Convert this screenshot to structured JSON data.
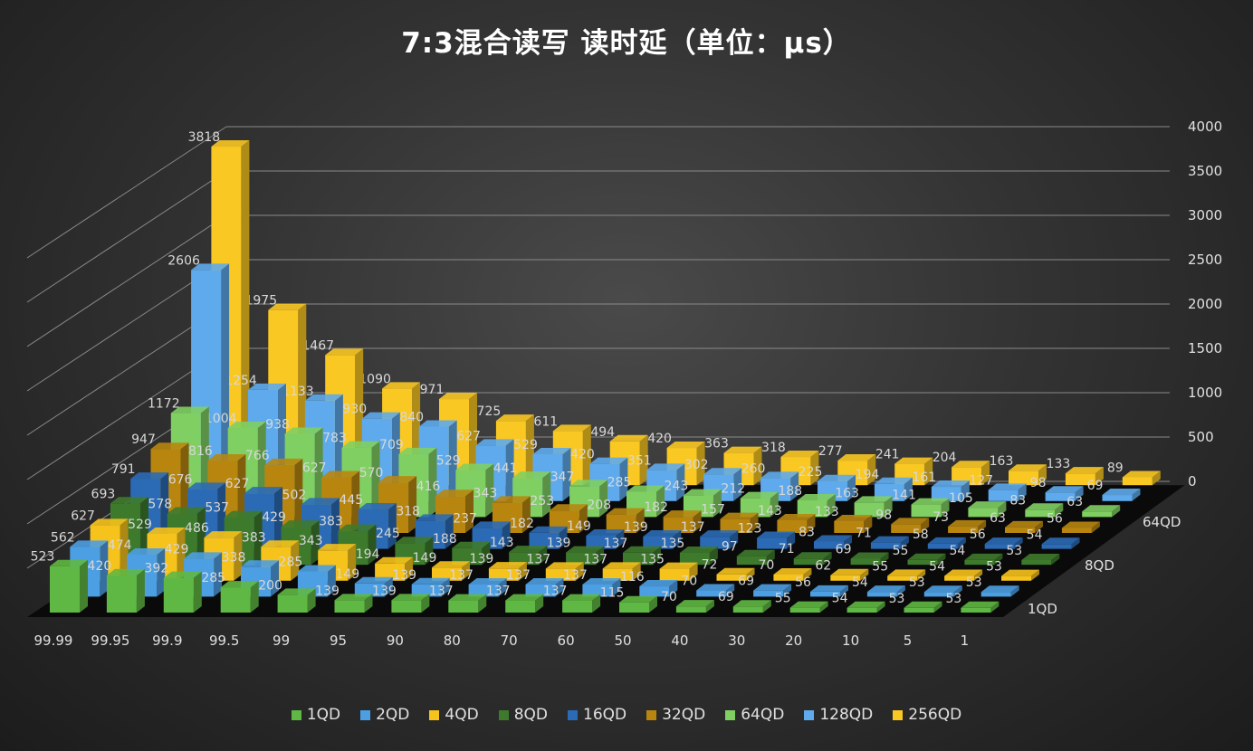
{
  "chart_data": {
    "type": "bar",
    "subtype": "3d-clustered-depth",
    "title": "7:3混合读写 读时延（单位：μs）",
    "categories": [
      "99.99",
      "99.95",
      "99.9",
      "99.5",
      "99",
      "95",
      "90",
      "80",
      "70",
      "60",
      "50",
      "40",
      "30",
      "20",
      "10",
      "5",
      "1"
    ],
    "depth_labels": [
      "1QD",
      "8QD",
      "64QD"
    ],
    "ylim": [
      0,
      4000
    ],
    "yticks": [
      0,
      500,
      1000,
      1500,
      2000,
      2500,
      3000,
      3500,
      4000
    ],
    "grid": true,
    "legend": "bottom",
    "series": [
      {
        "name": "1QD",
        "color": "#5fb843",
        "values": [
          523,
          420,
          392,
          285,
          200,
          139,
          139,
          137,
          137,
          137,
          115,
          70,
          69,
          55,
          54,
          53,
          53
        ]
      },
      {
        "name": "2QD",
        "color": "#4d9fe3",
        "values": [
          562,
          474,
          429,
          338,
          285,
          149,
          139,
          137,
          137,
          137,
          116,
          70,
          69,
          56,
          54,
          53,
          53
        ]
      },
      {
        "name": "4QD",
        "color": "#f6c21c",
        "values": [
          627,
          529,
          486,
          383,
          343,
          194,
          149,
          139,
          137,
          137,
          135,
          72,
          70,
          62,
          55,
          54,
          53
        ]
      },
      {
        "name": "8QD",
        "color": "#3e7a2c",
        "values": [
          693,
          578,
          537,
          429,
          383,
          245,
          188,
          143,
          139,
          137,
          135,
          97,
          71,
          69,
          55,
          54,
          53
        ]
      },
      {
        "name": "16QD",
        "color": "#2b6bb6",
        "values": [
          791,
          676,
          627,
          502,
          445,
          318,
          237,
          182,
          149,
          139,
          137,
          123,
          83,
          71,
          58,
          56,
          54
        ]
      },
      {
        "name": "32QD",
        "color": "#b8860f",
        "values": [
          947,
          816,
          766,
          627,
          570,
          416,
          343,
          253,
          208,
          182,
          157,
          143,
          133,
          98,
          73,
          63,
          56
        ]
      },
      {
        "name": "64QD",
        "color": "#80cf62",
        "values": [
          1172,
          1004,
          938,
          783,
          709,
          529,
          441,
          347,
          285,
          243,
          212,
          188,
          163,
          141,
          105,
          83,
          63
        ]
      },
      {
        "name": "128QD",
        "color": "#5eaaec",
        "values": [
          2606,
          1254,
          1133,
          930,
          840,
          627,
          529,
          420,
          351,
          302,
          260,
          225,
          194,
          161,
          127,
          98,
          69
        ]
      },
      {
        "name": "256QD",
        "color": "#fac822",
        "values": [
          3818,
          1975,
          1467,
          1090,
          971,
          725,
          611,
          494,
          420,
          363,
          318,
          277,
          241,
          204,
          163,
          133,
          89
        ]
      }
    ]
  }
}
